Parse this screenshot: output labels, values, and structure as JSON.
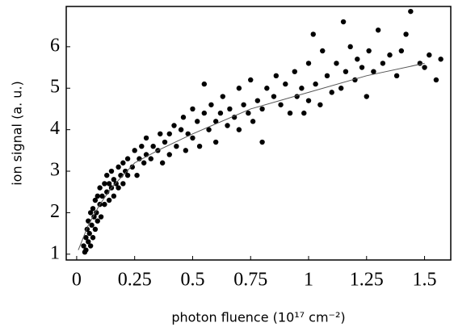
{
  "chart_data": {
    "type": "scatter",
    "x_label": "photon fluence (10¹⁷ cm⁻²)",
    "y_label": "ion signal (a. u.)",
    "xlim": [
      -0.045,
      1.613
    ],
    "ylim": [
      0.86,
      6.97
    ],
    "xticks": [
      0,
      0.25,
      0.5,
      0.75,
      1,
      1.25,
      1.5
    ],
    "yticks": [
      1,
      2,
      3,
      4,
      5,
      6
    ],
    "series": [
      {
        "type": "scatter",
        "color": "#000000",
        "x": [
          0.03,
          0.035,
          0.04,
          0.04,
          0.045,
          0.05,
          0.05,
          0.055,
          0.06,
          0.06,
          0.065,
          0.07,
          0.07,
          0.075,
          0.08,
          0.08,
          0.085,
          0.09,
          0.09,
          0.1,
          0.1,
          0.105,
          0.11,
          0.12,
          0.12,
          0.13,
          0.13,
          0.14,
          0.14,
          0.15,
          0.15,
          0.16,
          0.16,
          0.17,
          0.18,
          0.18,
          0.19,
          0.2,
          0.2,
          0.21,
          0.22,
          0.22,
          0.24,
          0.25,
          0.26,
          0.27,
          0.28,
          0.29,
          0.3,
          0.3,
          0.32,
          0.33,
          0.35,
          0.36,
          0.37,
          0.38,
          0.4,
          0.4,
          0.42,
          0.43,
          0.45,
          0.46,
          0.47,
          0.48,
          0.5,
          0.5,
          0.52,
          0.53,
          0.55,
          0.55,
          0.57,
          0.58,
          0.6,
          0.6,
          0.62,
          0.63,
          0.65,
          0.66,
          0.68,
          0.7,
          0.7,
          0.72,
          0.74,
          0.75,
          0.76,
          0.78,
          0.8,
          0.8,
          0.82,
          0.85,
          0.86,
          0.88,
          0.9,
          0.92,
          0.94,
          0.95,
          0.97,
          0.98,
          1.0,
          1.0,
          1.02,
          1.03,
          1.05,
          1.06,
          1.08,
          1.1,
          1.12,
          1.14,
          1.15,
          1.16,
          1.18,
          1.2,
          1.21,
          1.23,
          1.25,
          1.26,
          1.28,
          1.3,
          1.32,
          1.35,
          1.38,
          1.4,
          1.42,
          1.44,
          1.48,
          1.5,
          1.52,
          1.55,
          1.57
        ],
        "values": [
          1.2,
          1.05,
          1.4,
          1.1,
          1.6,
          1.3,
          1.8,
          1.5,
          1.2,
          2.0,
          1.7,
          1.4,
          2.1,
          1.9,
          1.6,
          2.3,
          2.0,
          1.8,
          2.4,
          2.2,
          2.6,
          1.9,
          2.4,
          2.7,
          2.2,
          2.5,
          2.9,
          2.3,
          2.7,
          2.6,
          3.0,
          2.4,
          2.8,
          2.7,
          3.1,
          2.6,
          2.9,
          3.2,
          2.7,
          3.0,
          3.3,
          2.9,
          3.1,
          3.5,
          2.9,
          3.3,
          3.6,
          3.2,
          3.4,
          3.8,
          3.3,
          3.6,
          3.5,
          3.9,
          3.2,
          3.7,
          3.9,
          3.4,
          4.1,
          3.6,
          4.0,
          4.3,
          3.5,
          3.9,
          4.5,
          3.8,
          4.2,
          3.6,
          4.4,
          5.1,
          4.0,
          4.6,
          4.2,
          3.7,
          4.4,
          4.8,
          4.1,
          4.5,
          4.3,
          5.0,
          4.0,
          4.6,
          4.4,
          5.2,
          4.2,
          4.7,
          4.5,
          3.7,
          5.0,
          4.8,
          5.3,
          4.6,
          5.1,
          4.4,
          5.4,
          4.8,
          5.0,
          4.4,
          5.6,
          4.7,
          6.3,
          5.1,
          4.6,
          5.9,
          5.3,
          4.9,
          5.6,
          5.0,
          6.6,
          5.4,
          6.0,
          5.2,
          5.7,
          5.5,
          4.8,
          5.9,
          5.4,
          6.4,
          5.6,
          5.8,
          5.3,
          5.9,
          6.3,
          6.85,
          5.6,
          5.5,
          5.8,
          5.2,
          5.7
        ]
      },
      {
        "type": "line",
        "color": "#555555",
        "x": [
          0.007,
          0.05,
          0.1,
          0.15,
          0.25,
          0.35,
          0.5,
          0.75,
          1.0,
          1.25,
          1.5
        ],
        "values": [
          1.1,
          1.7,
          2.2,
          2.6,
          3.2,
          3.5,
          3.9,
          4.5,
          4.9,
          5.3,
          5.6
        ]
      }
    ]
  }
}
